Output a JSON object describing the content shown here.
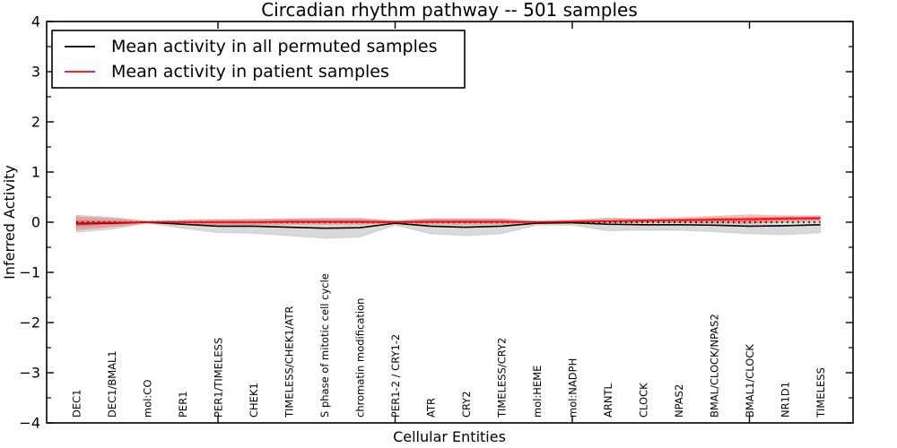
{
  "figure": {
    "title": "Circadian rhythm pathway -- 501 samples",
    "xlabel": "Cellular Entities",
    "ylabel": "Inferred Activity"
  },
  "legend": {
    "position": "upper left",
    "entries": [
      {
        "label": "Mean activity in all permuted samples",
        "color": "#000000"
      },
      {
        "label": "Mean activity in patient samples",
        "color": "#ff0000"
      }
    ]
  },
  "chart_data": {
    "type": "line",
    "title": "Circadian rhythm pathway -- 501 samples",
    "xlabel": "Cellular Entities",
    "ylabel": "Inferred Activity",
    "ylim": [
      -4,
      4
    ],
    "ytick_labels": [
      "−4",
      "−3",
      "−2",
      "−1",
      "0",
      "1",
      "2",
      "3",
      "4"
    ],
    "ytick_values": [
      -4,
      -3,
      -2,
      -1,
      0,
      1,
      2,
      3,
      4
    ],
    "y_minor_step": 0.5,
    "grid": false,
    "legend_position": "upper left",
    "categories": [
      "DEC1",
      "DEC1/BMAL1",
      "mol:CO",
      "PER1",
      "PER1/TIMELESS",
      "CHEK1",
      "TIMELESS/CHEK1/ATR",
      "S phase of mitotic cell cycle",
      "chromatin modification",
      "PER1-2 / CRY1-2",
      "ATR",
      "CRY2",
      "TIMELESS/CRY2",
      "mol:HEME",
      "mol:NADPH",
      "ARNTL",
      "CLOCK",
      "NPAS2",
      "BMAL/CLOCK/NPAS2",
      "BMAL1/CLOCK",
      "NR1D1",
      "TIMELESS"
    ],
    "x_major_tick_indices": [
      4,
      9,
      14,
      19
    ],
    "series": [
      {
        "name": "Mean activity in all permuted samples",
        "color": "#000000",
        "style": "solid",
        "values": [
          -0.03,
          -0.02,
          0.0,
          -0.04,
          -0.08,
          -0.08,
          -0.1,
          -0.12,
          -0.11,
          -0.02,
          -0.08,
          -0.1,
          -0.08,
          -0.02,
          -0.01,
          -0.04,
          -0.05,
          -0.05,
          -0.06,
          -0.08,
          -0.07,
          -0.05
        ]
      },
      {
        "name": "Mean activity in patient samples",
        "color": "#ff0000",
        "style": "solid",
        "values": [
          -0.02,
          -0.01,
          0.0,
          0.0,
          0.0,
          0.0,
          0.01,
          0.01,
          0.01,
          0.0,
          0.01,
          0.01,
          0.01,
          0.0,
          0.01,
          0.02,
          0.03,
          0.04,
          0.05,
          0.06,
          0.07,
          0.08
        ]
      }
    ],
    "zero_line": {
      "y": 0,
      "color": "#000000",
      "style": "dotted"
    },
    "bands": [
      {
        "name": "permuted-samples-range",
        "center_series": 0,
        "fill": "rgba(128,128,128,0.30)",
        "edge": "rgba(0,0,0,0.10)",
        "half_widths": [
          0.17,
          0.12,
          0.02,
          0.08,
          0.13,
          0.14,
          0.17,
          0.2,
          0.19,
          0.04,
          0.15,
          0.17,
          0.15,
          0.04,
          0.05,
          0.13,
          0.11,
          0.11,
          0.13,
          0.15,
          0.18,
          0.16
        ]
      },
      {
        "name": "patient-samples-range-outer",
        "center_series": 1,
        "fill": "rgba(255,0,0,0.22)",
        "edge": "rgba(200,0,0,0.15)",
        "half_widths": [
          0.13,
          0.08,
          0.02,
          0.04,
          0.05,
          0.05,
          0.05,
          0.05,
          0.05,
          0.03,
          0.05,
          0.05,
          0.05,
          0.02,
          0.03,
          0.04,
          0.04,
          0.05,
          0.07,
          0.09,
          0.06,
          0.05
        ]
      },
      {
        "name": "patient-samples-range-inner",
        "center_series": 1,
        "fill": "rgba(255,0,0,0.28)",
        "edge": "none",
        "half_widths": [
          0.07,
          0.04,
          0.01,
          0.02,
          0.03,
          0.03,
          0.03,
          0.03,
          0.03,
          0.02,
          0.03,
          0.03,
          0.03,
          0.01,
          0.02,
          0.02,
          0.02,
          0.03,
          0.04,
          0.05,
          0.03,
          0.03
        ]
      }
    ]
  }
}
